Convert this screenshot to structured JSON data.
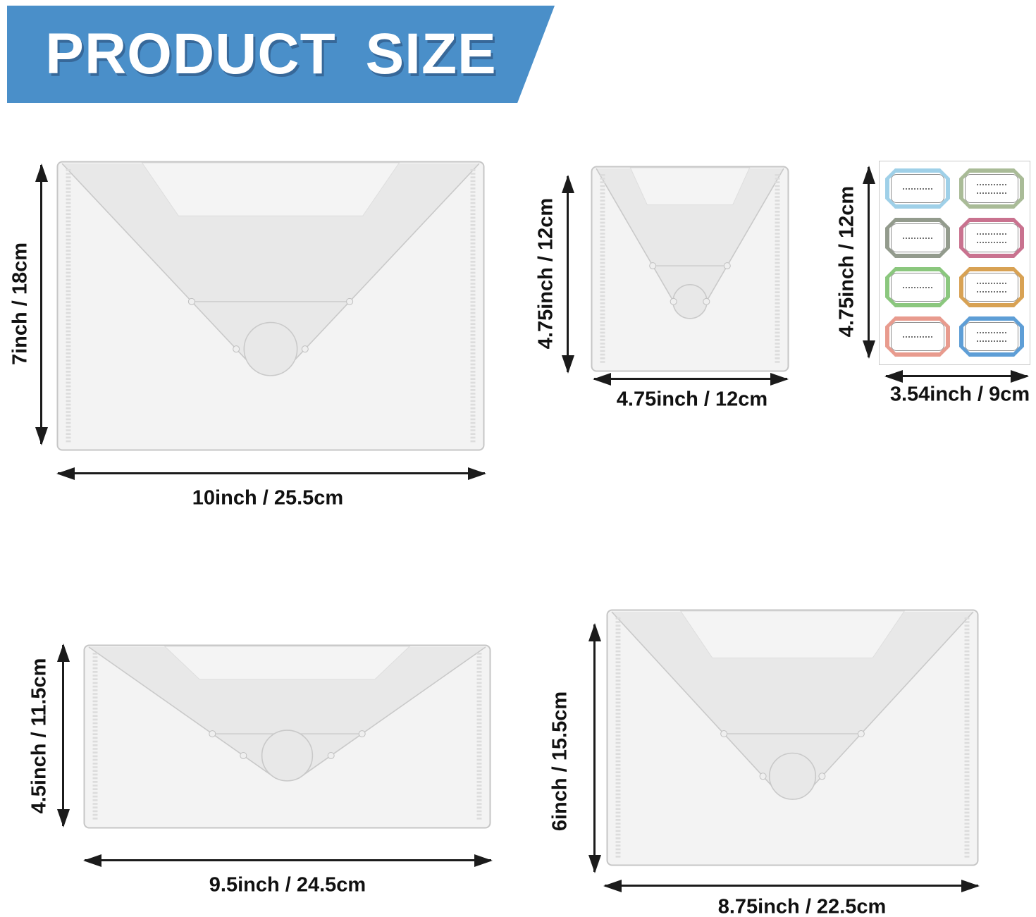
{
  "banner": {
    "title": "PRODUCT SIZE",
    "bg_color": "#4a8fc9",
    "text_color": "#ffffff"
  },
  "items": {
    "envelope_large": {
      "height_label": "7inch / 18cm",
      "width_label": "10inch / 25.5cm"
    },
    "envelope_square": {
      "height_label": "4.75inch / 12cm",
      "width_label": "4.75inch / 12cm"
    },
    "sticker_sheet": {
      "height_label": "4.75inch / 12cm",
      "width_label": "3.54inch / 9cm",
      "labels": [
        {
          "border_color": "#9fd0e8",
          "dotted_lines": 1
        },
        {
          "border_color": "#a9bb97",
          "dotted_lines": 2
        },
        {
          "border_color": "#939b8d",
          "dotted_lines": 1
        },
        {
          "border_color": "#c9728f",
          "dotted_lines": 2
        },
        {
          "border_color": "#8bc77e",
          "dotted_lines": 1
        },
        {
          "border_color": "#d8a254",
          "dotted_lines": 2
        },
        {
          "border_color": "#e89b8e",
          "dotted_lines": 1
        },
        {
          "border_color": "#5e9ed6",
          "dotted_lines": 2
        }
      ]
    },
    "envelope_wide": {
      "height_label": "4.5inch / 11.5cm",
      "width_label": "9.5inch / 24.5cm"
    },
    "envelope_medium": {
      "height_label": "6inch / 15.5cm",
      "width_label": "8.75inch / 22.5cm"
    }
  }
}
